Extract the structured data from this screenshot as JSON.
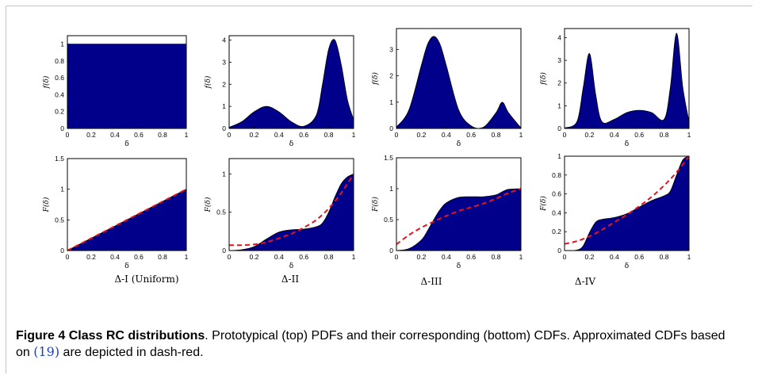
{
  "chart_data": [
    {
      "type": "area",
      "panel": "pdf",
      "x_axis_label": "δ",
      "y_axis_label": "f(δ)",
      "xlim": [
        0,
        1
      ],
      "ylim": [
        0,
        1.1
      ],
      "xticks": [
        0,
        0.2,
        0.4,
        0.6,
        0.8,
        1
      ],
      "yticks": [
        0,
        0.2,
        0.4,
        0.6,
        0.8,
        1
      ],
      "x": [
        0,
        0.2,
        0.4,
        0.6,
        0.8,
        1
      ],
      "y": [
        1,
        1,
        1,
        1,
        1,
        1
      ]
    },
    {
      "type": "area",
      "panel": "pdf",
      "x_axis_label": "δ",
      "y_axis_label": "f(δ)",
      "xlim": [
        0,
        1
      ],
      "ylim": [
        0,
        4.2
      ],
      "xticks": [
        0,
        0.2,
        0.4,
        0.6,
        0.8,
        1
      ],
      "yticks": [
        0,
        1,
        2,
        3,
        4
      ],
      "x": [
        0,
        0.1,
        0.2,
        0.3,
        0.4,
        0.5,
        0.6,
        0.7,
        0.75,
        0.8,
        0.85,
        0.9,
        0.95,
        1
      ],
      "y": [
        0.05,
        0.3,
        0.75,
        1.0,
        0.75,
        0.3,
        0.1,
        0.6,
        2.0,
        3.6,
        4.0,
        2.9,
        1.3,
        0.4
      ]
    },
    {
      "type": "area",
      "panel": "pdf",
      "x_axis_label": "δ",
      "y_axis_label": "f(δ)",
      "xlim": [
        0,
        1
      ],
      "ylim": [
        0,
        3.8
      ],
      "xticks": [
        0,
        0.2,
        0.4,
        0.6,
        0.8,
        1
      ],
      "yticks": [
        0,
        1,
        2,
        3
      ],
      "x": [
        0,
        0.1,
        0.2,
        0.25,
        0.3,
        0.35,
        0.4,
        0.5,
        0.6,
        0.7,
        0.8,
        0.85,
        0.9,
        1
      ],
      "y": [
        0.05,
        0.7,
        2.4,
        3.2,
        3.5,
        3.2,
        2.4,
        0.7,
        0.1,
        0.05,
        0.6,
        1.0,
        0.6,
        0.02
      ]
    },
    {
      "type": "area",
      "panel": "pdf",
      "x_axis_label": "δ",
      "y_axis_label": "f(δ)",
      "xlim": [
        0,
        1
      ],
      "ylim": [
        0,
        4.4
      ],
      "xticks": [
        0,
        0.2,
        0.4,
        0.6,
        0.8,
        1
      ],
      "yticks": [
        0,
        1,
        2,
        3,
        4
      ],
      "x": [
        0,
        0.1,
        0.15,
        0.2,
        0.25,
        0.3,
        0.4,
        0.5,
        0.6,
        0.7,
        0.8,
        0.85,
        0.9,
        0.95,
        1
      ],
      "y": [
        0.02,
        0.3,
        1.8,
        3.3,
        1.5,
        0.3,
        0.4,
        0.7,
        0.8,
        0.7,
        0.4,
        1.8,
        4.2,
        1.8,
        0.3
      ]
    },
    {
      "type": "area",
      "panel": "cdf",
      "x_axis_label": "δ",
      "y_axis_label": "F(δ)",
      "xlim": [
        0,
        1
      ],
      "ylim": [
        0,
        1.5
      ],
      "xticks": [
        0,
        0.2,
        0.4,
        0.6,
        0.8,
        1
      ],
      "yticks": [
        0,
        0.5,
        1,
        1.5
      ],
      "x": [
        0,
        0.2,
        0.4,
        0.6,
        0.8,
        1
      ],
      "y": [
        0,
        0.2,
        0.4,
        0.6,
        0.8,
        1
      ],
      "approx_x": [
        0,
        0.2,
        0.4,
        0.6,
        0.8,
        1
      ],
      "approx_y": [
        0,
        0.2,
        0.4,
        0.6,
        0.8,
        1
      ]
    },
    {
      "type": "area",
      "panel": "cdf",
      "x_axis_label": "δ",
      "y_axis_label": "F(δ)",
      "xlim": [
        0,
        1
      ],
      "ylim": [
        0,
        1.2
      ],
      "xticks": [
        0,
        0.2,
        0.4,
        0.6,
        0.8,
        1
      ],
      "yticks": [
        0,
        0.5,
        1
      ],
      "x": [
        0,
        0.1,
        0.2,
        0.3,
        0.4,
        0.5,
        0.6,
        0.7,
        0.75,
        0.8,
        0.85,
        0.9,
        0.95,
        1
      ],
      "y": [
        0,
        0.01,
        0.05,
        0.15,
        0.24,
        0.27,
        0.28,
        0.31,
        0.36,
        0.5,
        0.7,
        0.87,
        0.96,
        1.0
      ],
      "approx_x": [
        0,
        0.1,
        0.2,
        0.3,
        0.4,
        0.5,
        0.6,
        0.7,
        0.8,
        0.9,
        1
      ],
      "approx_y": [
        0.07,
        0.07,
        0.08,
        0.11,
        0.16,
        0.22,
        0.3,
        0.4,
        0.55,
        0.75,
        1.0
      ]
    },
    {
      "type": "area",
      "panel": "cdf",
      "x_axis_label": "δ",
      "y_axis_label": "F(δ)",
      "xlim": [
        0,
        1
      ],
      "ylim": [
        0,
        1.5
      ],
      "xticks": [
        0,
        0.2,
        0.4,
        0.6,
        0.8,
        1
      ],
      "yticks": [
        0,
        0.5,
        1,
        1.5
      ],
      "x": [
        0,
        0.1,
        0.2,
        0.25,
        0.3,
        0.35,
        0.4,
        0.5,
        0.6,
        0.7,
        0.8,
        0.85,
        0.9,
        1
      ],
      "y": [
        0,
        0.03,
        0.17,
        0.32,
        0.5,
        0.66,
        0.77,
        0.86,
        0.87,
        0.87,
        0.9,
        0.95,
        0.99,
        1.0
      ],
      "approx_x": [
        0,
        0.1,
        0.2,
        0.3,
        0.4,
        0.5,
        0.6,
        0.7,
        0.8,
        0.9,
        1
      ],
      "approx_y": [
        0.1,
        0.25,
        0.37,
        0.47,
        0.56,
        0.64,
        0.7,
        0.76,
        0.84,
        0.93,
        1.0
      ]
    },
    {
      "type": "area",
      "panel": "cdf",
      "x_axis_label": "δ",
      "y_axis_label": "F(δ)",
      "xlim": [
        0,
        1
      ],
      "ylim": [
        0,
        1
      ],
      "xticks": [
        0,
        0.2,
        0.4,
        0.6,
        0.8,
        1
      ],
      "yticks": [
        0,
        0.2,
        0.4,
        0.6,
        0.8,
        1
      ],
      "x": [
        0,
        0.1,
        0.15,
        0.2,
        0.25,
        0.3,
        0.4,
        0.5,
        0.6,
        0.7,
        0.8,
        0.85,
        0.9,
        0.95,
        1
      ],
      "y": [
        0,
        0.005,
        0.05,
        0.19,
        0.3,
        0.33,
        0.35,
        0.39,
        0.46,
        0.53,
        0.58,
        0.63,
        0.8,
        0.96,
        1.0
      ],
      "approx_x": [
        0,
        0.1,
        0.2,
        0.3,
        0.4,
        0.5,
        0.6,
        0.7,
        0.8,
        0.9,
        1
      ],
      "approx_y": [
        0.07,
        0.1,
        0.15,
        0.22,
        0.3,
        0.38,
        0.47,
        0.57,
        0.69,
        0.83,
        1.0
      ]
    }
  ],
  "panel_titles": [
    "Δ-I (Uniform)",
    "Δ-II",
    "Δ-III",
    "Δ-IV"
  ],
  "caption": {
    "label": "Figure 4",
    "title": "Class RC distributions",
    "text_1": ". Prototypical (top) PDFs and their corresponding (bottom) CDFs. Approximated CDFs based on ",
    "ref": "(19)",
    "text_2": " are depicted in dash-red."
  },
  "colors": {
    "fill": "#00008b",
    "approx_line": "#e8131a",
    "frame": "#b7c8da",
    "ref_link": "#1f3fb8"
  }
}
